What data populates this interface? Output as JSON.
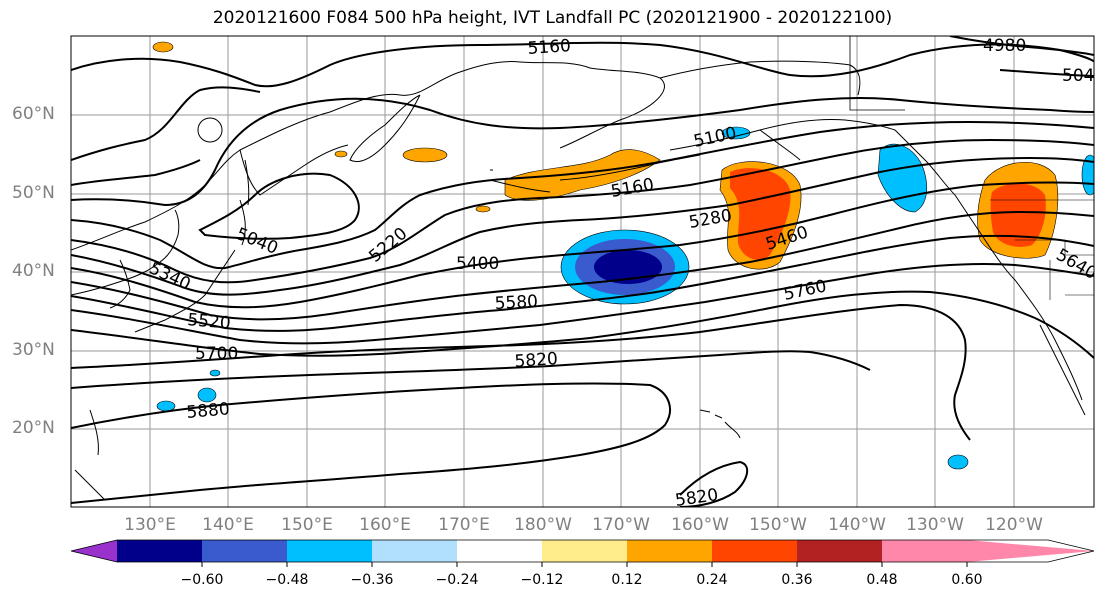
{
  "title": "2020121600 F084 500 hPa height, IVT Landfall PC (2020121900 - 2020122100)",
  "lat_labels": [
    "60°N",
    "50°N",
    "40°N",
    "30°N",
    "20°N"
  ],
  "lon_labels": [
    "130°E",
    "140°E",
    "150°E",
    "160°E",
    "170°E",
    "180°W",
    "170°W",
    "160°W",
    "150°W",
    "140°W",
    "130°W",
    "120°W"
  ],
  "contour_labels": [
    "5160",
    "4980",
    "504",
    "5100",
    "5160",
    "5280",
    "5040",
    "5220",
    "5340",
    "5400",
    "5460",
    "5520",
    "5580",
    "5640",
    "5700",
    "5760",
    "5820",
    "5880",
    "5820"
  ],
  "colorbar": {
    "ticks": [
      "−0.60",
      "−0.48",
      "−0.36",
      "−0.24",
      "−0.12",
      "0.12",
      "0.24",
      "0.36",
      "0.48",
      "0.60"
    ],
    "colors": [
      "#9932cc",
      "#00008b",
      "#3a5bcd",
      "#00bfff",
      "#b0e0fd",
      "#ffffff",
      "#ffec8b",
      "#ffa500",
      "#ff4500",
      "#b22222",
      "#ff88aa"
    ]
  }
}
